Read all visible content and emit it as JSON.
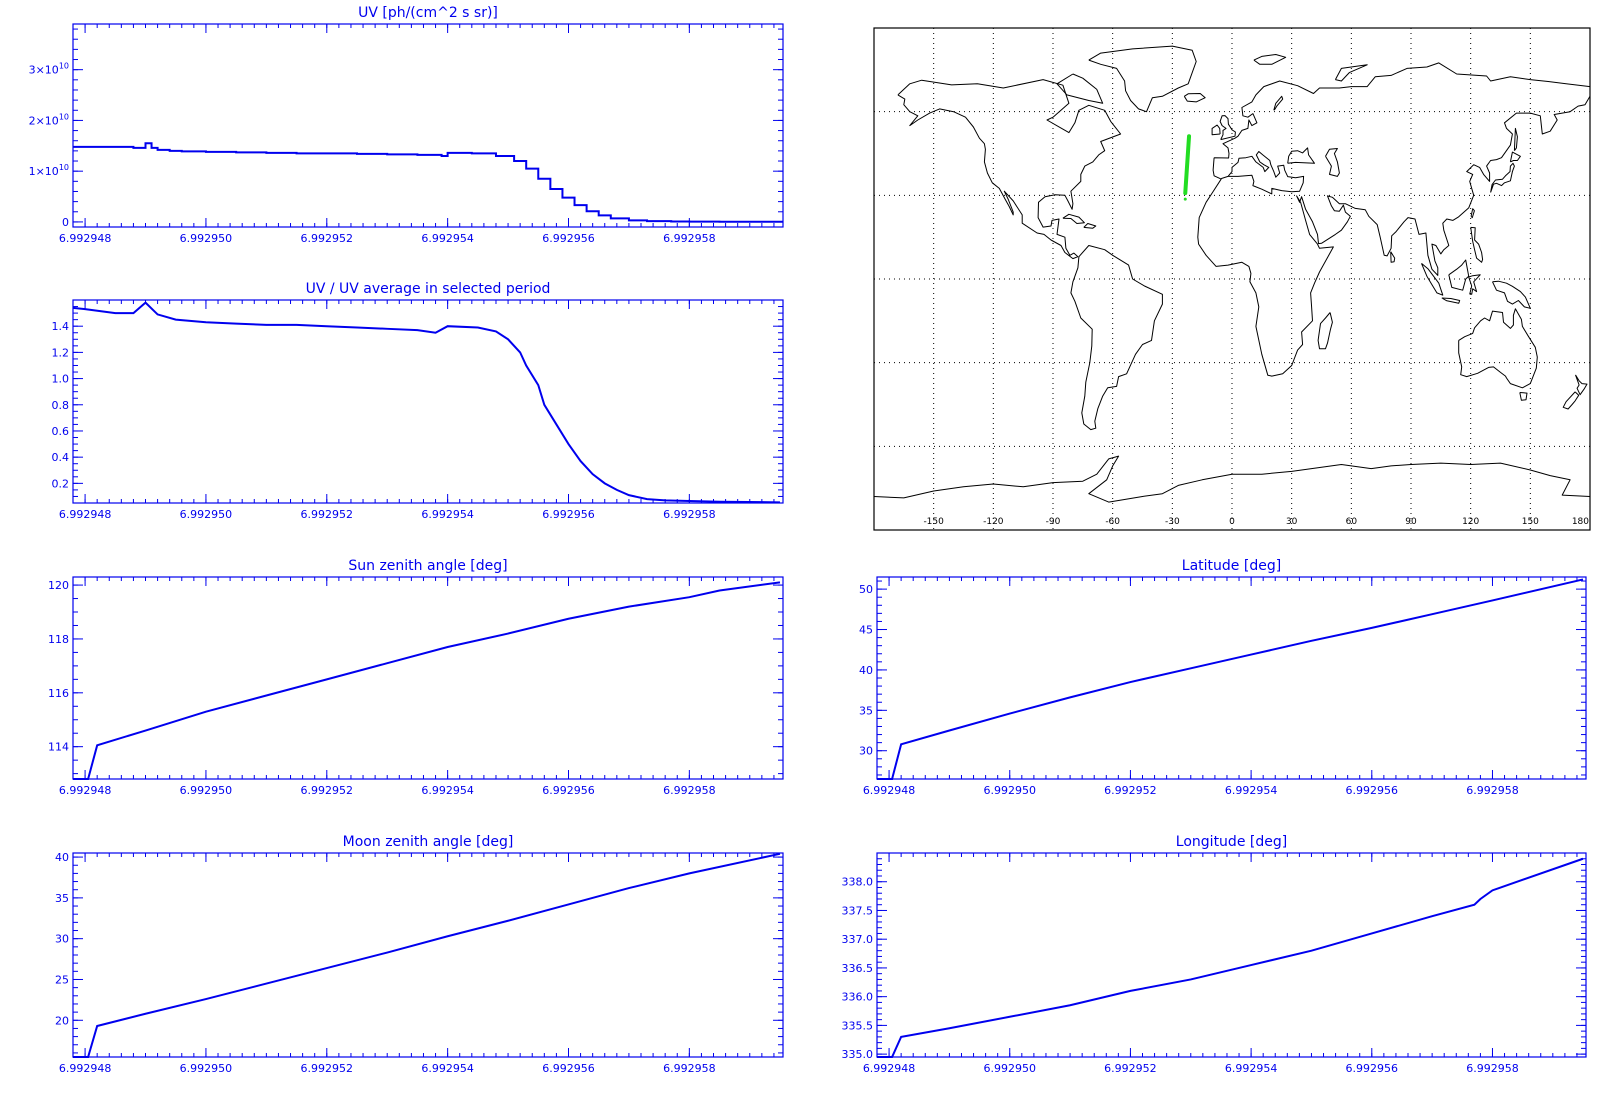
{
  "colors": {
    "plot": "#0000ee",
    "track": "#22dd22",
    "coast": "#000000",
    "background": "#ffffff"
  },
  "chart_data": [
    {
      "id": "uv",
      "type": "line",
      "title": "UV [ph/(cm^2 s sr)]",
      "step": true,
      "xlim": [
        6.9929478,
        6.99295955
      ],
      "ylim": [
        -1000000000.0,
        39000000000.0
      ],
      "x_ticks": [
        6.992948,
        6.99295,
        6.992952,
        6.992954,
        6.992956,
        6.992958
      ],
      "x_tick_labels": [
        "6.992948",
        "6.992950",
        "6.992952",
        "6.992954",
        "6.992956",
        "6.992958"
      ],
      "y_ticks": [
        0,
        10000000000.0,
        20000000000.0,
        30000000000.0
      ],
      "y_tick_labels": [
        {
          "base": "0",
          "exp": ""
        },
        {
          "base": "1×10",
          "exp": "10"
        },
        {
          "base": "2×10",
          "exp": "10"
        },
        {
          "base": "3×10",
          "exp": "10"
        }
      ],
      "y_minor": 2000000000.0,
      "x": [
        6.9929478,
        6.9929488,
        6.992949,
        6.9929491,
        6.9929492,
        6.9929494,
        6.9929496,
        6.99295,
        6.9929505,
        6.992951,
        6.9929515,
        6.992952,
        6.9929525,
        6.992953,
        6.9929535,
        6.9929539,
        6.992954,
        6.9929544,
        6.9929548,
        6.9929551,
        6.9929553,
        6.9929555,
        6.9929557,
        6.9929559,
        6.9929561,
        6.9929563,
        6.9929565,
        6.9929567,
        6.992957,
        6.9929573,
        6.9929577,
        6.992958,
        6.9929585,
        6.9929595
      ],
      "y": [
        14800000000.0,
        14600000000.0,
        15500000000.0,
        14600000000.0,
        14200000000.0,
        14000000000.0,
        13900000000.0,
        13800000000.0,
        13700000000.0,
        13600000000.0,
        13500000000.0,
        13500000000.0,
        13400000000.0,
        13300000000.0,
        13200000000.0,
        13000000000.0,
        13600000000.0,
        13500000000.0,
        13000000000.0,
        12000000000.0,
        10500000000.0,
        8500000000.0,
        6500000000.0,
        4800000000.0,
        3300000000.0,
        2100000000.0,
        1300000000.0,
        700000000.0,
        300000000.0,
        150000000.0,
        80000000.0,
        50000000.0,
        40000000.0,
        30000000.0
      ]
    },
    {
      "id": "ratio",
      "type": "line",
      "title": "UV / UV average in selected period",
      "xlim": [
        6.9929478,
        6.99295955
      ],
      "ylim": [
        0.05,
        1.6
      ],
      "x_ticks": [
        6.992948,
        6.99295,
        6.992952,
        6.992954,
        6.992956,
        6.992958
      ],
      "x_tick_labels": [
        "6.992948",
        "6.992950",
        "6.992952",
        "6.992954",
        "6.992956",
        "6.992958"
      ],
      "y_ticks": [
        0.2,
        0.4,
        0.6,
        0.8,
        1.0,
        1.2,
        1.4
      ],
      "y_tick_labels": [
        "0.2",
        "0.4",
        "0.6",
        "0.8",
        "1.0",
        "1.2",
        "1.4"
      ],
      "y_minor": 0.05,
      "x": [
        6.9929478,
        6.992948,
        6.9929485,
        6.9929488,
        6.992949,
        6.9929492,
        6.9929495,
        6.99295,
        6.9929505,
        6.992951,
        6.9929515,
        6.992952,
        6.9929525,
        6.992953,
        6.9929535,
        6.9929538,
        6.992954,
        6.9929545,
        6.9929548,
        6.992955,
        6.9929552,
        6.9929553,
        6.9929555,
        6.9929556,
        6.9929558,
        6.992956,
        6.9929562,
        6.9929564,
        6.9929566,
        6.9929568,
        6.992957,
        6.9929573,
        6.9929576,
        6.992958,
        6.9929585,
        6.9929595
      ],
      "y": [
        1.54,
        1.53,
        1.5,
        1.5,
        1.58,
        1.49,
        1.45,
        1.43,
        1.42,
        1.41,
        1.41,
        1.4,
        1.39,
        1.38,
        1.37,
        1.35,
        1.4,
        1.39,
        1.36,
        1.3,
        1.2,
        1.1,
        0.95,
        0.8,
        0.65,
        0.5,
        0.37,
        0.27,
        0.2,
        0.15,
        0.11,
        0.08,
        0.07,
        0.065,
        0.06,
        0.055
      ]
    },
    {
      "id": "sza",
      "type": "line",
      "title": "Sun zenith angle [deg]",
      "xlim": [
        6.9929478,
        6.99295955
      ],
      "ylim": [
        112.8,
        120.3
      ],
      "x_ticks": [
        6.992948,
        6.99295,
        6.992952,
        6.992954,
        6.992956,
        6.992958
      ],
      "x_tick_labels": [
        "6.992948",
        "6.992950",
        "6.992952",
        "6.992954",
        "6.992956",
        "6.992958"
      ],
      "y_ticks": [
        114,
        116,
        118,
        120
      ],
      "y_tick_labels": [
        "114",
        "116",
        "118",
        "120"
      ],
      "y_minor": 0.5,
      "x": [
        6.9929478,
        6.99294805,
        6.9929482,
        6.992949,
        6.99295,
        6.992951,
        6.992952,
        6.992953,
        6.992954,
        6.992955,
        6.992956,
        6.992957,
        6.992958,
        6.9929585,
        6.9929595
      ],
      "y": [
        112.8,
        112.8,
        114.05,
        114.6,
        115.3,
        115.9,
        116.5,
        117.1,
        117.7,
        118.2,
        118.75,
        119.2,
        119.55,
        119.8,
        120.1
      ]
    },
    {
      "id": "lat",
      "type": "line",
      "title": "Latitude [deg]",
      "xlim": [
        6.9929478,
        6.99295955
      ],
      "ylim": [
        26.5,
        51.5
      ],
      "x_ticks": [
        6.992948,
        6.99295,
        6.992952,
        6.992954,
        6.992956,
        6.992958
      ],
      "x_tick_labels": [
        "6.992948",
        "6.992950",
        "6.992952",
        "6.992954",
        "6.992956",
        "6.992958"
      ],
      "y_ticks": [
        30,
        35,
        40,
        45,
        50
      ],
      "y_tick_labels": [
        "30",
        "35",
        "40",
        "45",
        "50"
      ],
      "y_minor": 1,
      "x": [
        6.9929478,
        6.99294805,
        6.9929482,
        6.992949,
        6.99295,
        6.992951,
        6.992952,
        6.992953,
        6.992954,
        6.992955,
        6.992956,
        6.992957,
        6.992958,
        6.9929595
      ],
      "y": [
        26.5,
        26.5,
        30.8,
        32.5,
        34.6,
        36.6,
        38.5,
        40.2,
        41.9,
        43.6,
        45.2,
        46.9,
        48.6,
        51.2
      ]
    },
    {
      "id": "mza",
      "type": "line",
      "title": "Moon zenith angle [deg]",
      "xlim": [
        6.9929478,
        6.99295955
      ],
      "ylim": [
        15.5,
        40.5
      ],
      "x_ticks": [
        6.992948,
        6.99295,
        6.992952,
        6.992954,
        6.992956,
        6.992958
      ],
      "x_tick_labels": [
        "6.992948",
        "6.992950",
        "6.992952",
        "6.992954",
        "6.992956",
        "6.992958"
      ],
      "y_ticks": [
        20,
        25,
        30,
        35,
        40
      ],
      "y_tick_labels": [
        "20",
        "25",
        "30",
        "35",
        "40"
      ],
      "y_minor": 1,
      "x": [
        6.9929478,
        6.99294805,
        6.9929482,
        6.992949,
        6.99295,
        6.992951,
        6.992952,
        6.992953,
        6.992954,
        6.992955,
        6.992956,
        6.992957,
        6.992958,
        6.9929595
      ],
      "y": [
        15.5,
        15.5,
        19.3,
        20.8,
        22.6,
        24.5,
        26.4,
        28.3,
        30.3,
        32.2,
        34.2,
        36.2,
        38.0,
        40.4
      ]
    },
    {
      "id": "lon",
      "type": "line",
      "title": "Longitude [deg]",
      "xlim": [
        6.9929478,
        6.99295955
      ],
      "ylim": [
        334.95,
        338.5
      ],
      "x_ticks": [
        6.992948,
        6.99295,
        6.992952,
        6.992954,
        6.992956,
        6.992958
      ],
      "x_tick_labels": [
        "6.992948",
        "6.992950",
        "6.992952",
        "6.992954",
        "6.992956",
        "6.992958"
      ],
      "y_ticks": [
        335.0,
        335.5,
        336.0,
        336.5,
        337.0,
        337.5,
        338.0
      ],
      "y_tick_labels": [
        "335.0",
        "335.5",
        "336.0",
        "336.5",
        "337.0",
        "337.5",
        "338.0"
      ],
      "y_minor": 0.1,
      "x": [
        6.9929478,
        6.99294805,
        6.9929482,
        6.992949,
        6.99295,
        6.992951,
        6.992952,
        6.992953,
        6.992954,
        6.992955,
        6.992956,
        6.992957,
        6.9929577,
        6.9929578,
        6.992958,
        6.9929595
      ],
      "y": [
        334.95,
        334.95,
        335.3,
        335.45,
        335.65,
        335.85,
        336.1,
        336.3,
        336.55,
        336.8,
        337.1,
        337.4,
        337.6,
        337.7,
        337.85,
        338.4
      ]
    }
  ],
  "map": {
    "title": "",
    "lon_range": [
      -180,
      180
    ],
    "lat_range": [
      -90,
      90
    ],
    "lon_ticks": [
      -150,
      -120,
      -90,
      -60,
      -30,
      0,
      30,
      60,
      90,
      120,
      150,
      180
    ],
    "lon_tick_labels": [
      "-150",
      "-120",
      "-90",
      "-60",
      "-30",
      "0",
      "30",
      "60",
      "90",
      "120",
      "150",
      "180"
    ],
    "lat_grid": [
      -60,
      -30,
      0,
      30,
      60
    ],
    "track_lon": [
      -23.5,
      -21.6
    ],
    "track_lat": [
      30.8,
      51.2
    ]
  }
}
